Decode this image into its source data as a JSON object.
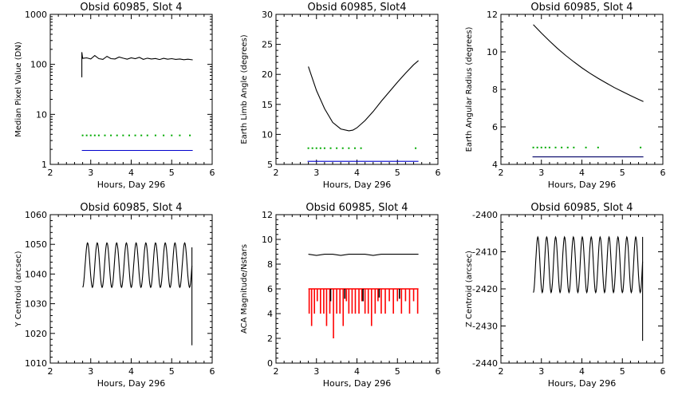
{
  "chart_data": [
    {
      "type": "line",
      "title": "Obsid 60985, Slot 4",
      "xlabel": "Hours, Day 296",
      "ylabel": "Median Pixel Value (DN)",
      "xlim": [
        2,
        6
      ],
      "ylim": [
        1,
        1000
      ],
      "ylog": true,
      "xticks": [
        "2",
        "3",
        "4",
        "5",
        "6"
      ],
      "yticks": [
        {
          "v": 1,
          "l": "1"
        },
        {
          "v": 10,
          "l": "10"
        },
        {
          "v": 100,
          "l": "100"
        },
        {
          "v": 1000,
          "l": "1000"
        }
      ],
      "series": [
        {
          "color": "#000000",
          "style": "line",
          "x": [
            2.78,
            2.78,
            2.8,
            2.9,
            3.0,
            3.1,
            3.2,
            3.3,
            3.4,
            3.5,
            3.6,
            3.7,
            3.8,
            3.9,
            4.0,
            4.1,
            4.2,
            4.3,
            4.4,
            4.5,
            4.6,
            4.7,
            4.8,
            4.9,
            5.0,
            5.1,
            5.2,
            5.3,
            5.4,
            5.52
          ],
          "y": [
            55,
            175,
            132,
            135,
            128,
            150,
            130,
            126,
            145,
            130,
            128,
            140,
            133,
            127,
            135,
            130,
            138,
            126,
            133,
            128,
            131,
            125,
            132,
            127,
            130,
            126,
            128,
            124,
            127,
            123
          ]
        },
        {
          "color": "#00aa00",
          "style": "dots",
          "x": [
            2.8,
            2.9,
            3.0,
            3.1,
            3.2,
            3.35,
            3.5,
            3.65,
            3.8,
            3.95,
            4.1,
            4.25,
            4.4,
            4.6,
            4.8,
            5.0,
            5.2,
            5.45
          ],
          "y": [
            3.8,
            3.8,
            3.8,
            3.8,
            3.8,
            3.8,
            3.8,
            3.8,
            3.8,
            3.8,
            3.8,
            3.8,
            3.8,
            3.8,
            3.8,
            3.8,
            3.8,
            3.8
          ]
        },
        {
          "color": "#0000cc",
          "style": "line",
          "x": [
            2.78,
            5.52
          ],
          "y": [
            1.9,
            1.9
          ]
        }
      ]
    },
    {
      "type": "line",
      "title": "Obsid 60985, Slot4",
      "xlabel": "Hours, Day 296",
      "ylabel": "Earth Limb Angle (degrees)",
      "xlim": [
        2,
        6
      ],
      "ylim": [
        5,
        30
      ],
      "xticks": [
        "2",
        "3",
        "4",
        "5",
        "6"
      ],
      "yticks": [
        {
          "v": 5,
          "l": "5"
        },
        {
          "v": 10,
          "l": "10"
        },
        {
          "v": 15,
          "l": "15"
        },
        {
          "v": 20,
          "l": "20"
        },
        {
          "v": 25,
          "l": "25"
        },
        {
          "v": 30,
          "l": "30"
        }
      ],
      "series": [
        {
          "color": "#000000",
          "style": "line",
          "x": [
            2.8,
            3.0,
            3.2,
            3.4,
            3.6,
            3.8,
            3.9,
            4.0,
            4.2,
            4.4,
            4.6,
            4.8,
            5.0,
            5.2,
            5.4,
            5.52
          ],
          "y": [
            21.3,
            17.3,
            14.3,
            12.0,
            10.9,
            10.6,
            10.7,
            11.1,
            12.3,
            13.8,
            15.5,
            17.1,
            18.7,
            20.2,
            21.6,
            22.3
          ]
        },
        {
          "color": "#00aa00",
          "style": "dots",
          "x": [
            2.8,
            2.9,
            3.0,
            3.1,
            3.2,
            3.35,
            3.5,
            3.65,
            3.8,
            3.95,
            4.1,
            5.45
          ],
          "y": [
            7.7,
            7.7,
            7.7,
            7.7,
            7.7,
            7.7,
            7.7,
            7.7,
            7.7,
            7.7,
            7.7,
            7.7
          ]
        },
        {
          "color": "#0000cc",
          "style": "line",
          "x": [
            2.78,
            5.52
          ],
          "y": [
            5.5,
            5.5
          ]
        }
      ]
    },
    {
      "type": "line",
      "title": "Obsid 60985, Slot 4",
      "xlabel": "Hours, Day 296",
      "ylabel": "Earth Angular Radius (degrees)",
      "xlim": [
        2,
        6
      ],
      "ylim": [
        4,
        12
      ],
      "xticks": [
        "2",
        "3",
        "4",
        "5",
        "6"
      ],
      "yticks": [
        {
          "v": 4,
          "l": "4"
        },
        {
          "v": 6,
          "l": "6"
        },
        {
          "v": 8,
          "l": "8"
        },
        {
          "v": 10,
          "l": "10"
        },
        {
          "v": 12,
          "l": "12"
        }
      ],
      "series": [
        {
          "color": "#000000",
          "style": "line",
          "x": [
            2.8,
            3.0,
            3.2,
            3.4,
            3.6,
            3.8,
            4.0,
            4.2,
            4.4,
            4.6,
            4.8,
            5.0,
            5.2,
            5.4,
            5.52
          ],
          "y": [
            11.45,
            11.0,
            10.58,
            10.18,
            9.81,
            9.47,
            9.15,
            8.86,
            8.59,
            8.34,
            8.1,
            7.88,
            7.67,
            7.47,
            7.35
          ]
        },
        {
          "color": "#00aa00",
          "style": "dots",
          "x": [
            2.8,
            2.9,
            3.0,
            3.1,
            3.2,
            3.35,
            3.5,
            3.65,
            3.8,
            4.1,
            4.4,
            5.45
          ],
          "y": [
            4.9,
            4.9,
            4.9,
            4.9,
            4.9,
            4.9,
            4.9,
            4.9,
            4.9,
            4.9,
            4.9,
            4.9
          ]
        },
        {
          "color": "#000066",
          "style": "line",
          "x": [
            2.78,
            5.52
          ],
          "y": [
            4.4,
            4.4
          ]
        }
      ]
    },
    {
      "type": "line",
      "title": "Obsid 60985, Slot 4",
      "xlabel": "Hours, Day 296",
      "ylabel": "Y Centroid (arcsec)",
      "xlim": [
        2,
        6
      ],
      "ylim": [
        1010,
        1060
      ],
      "xticks": [
        "2",
        "3",
        "4",
        "5",
        "6"
      ],
      "yticks": [
        {
          "v": 1010,
          "l": "1010"
        },
        {
          "v": 1020,
          "l": "1020"
        },
        {
          "v": 1030,
          "l": "1030"
        },
        {
          "v": 1040,
          "l": "1040"
        },
        {
          "v": 1050,
          "l": "1050"
        },
        {
          "v": 1060,
          "l": "1060"
        }
      ],
      "series": [
        {
          "color": "#000000",
          "style": "line",
          "oscillate": {
            "start": 2.8,
            "end": 5.5,
            "mid": 1043,
            "amp": 7.5,
            "period": 0.24,
            "phase": -1.6
          },
          "tail": {
            "x": [
              5.5,
              5.5
            ],
            "y": [
              1049,
              1016
            ]
          }
        }
      ]
    },
    {
      "type": "line",
      "title": "Obsid 60985, Slot 4",
      "xlabel": "Hours, Day 296",
      "ylabel": "ACA Magnitude/Nstars",
      "xlim": [
        2,
        6
      ],
      "ylim": [
        0,
        12
      ],
      "xticks": [
        "2",
        "3",
        "4",
        "5",
        "6"
      ],
      "yticks": [
        {
          "v": 0,
          "l": "0"
        },
        {
          "v": 2,
          "l": "2"
        },
        {
          "v": 4,
          "l": "4"
        },
        {
          "v": 6,
          "l": "6"
        },
        {
          "v": 8,
          "l": "8"
        },
        {
          "v": 10,
          "l": "10"
        },
        {
          "v": 12,
          "l": "12"
        }
      ],
      "series": [
        {
          "color": "#000000",
          "style": "line",
          "x": [
            2.8,
            3.0,
            3.2,
            3.4,
            3.6,
            3.8,
            4.0,
            4.2,
            4.4,
            4.6,
            4.8,
            5.0,
            5.2,
            5.4,
            5.52
          ],
          "y": [
            8.8,
            8.7,
            8.8,
            8.8,
            8.7,
            8.8,
            8.8,
            8.8,
            8.7,
            8.8,
            8.8,
            8.8,
            8.8,
            8.8,
            8.8
          ]
        },
        {
          "color": "#ff0000",
          "style": "bars",
          "base": 6,
          "x": [
            2.82,
            2.88,
            2.95,
            3.02,
            3.1,
            3.18,
            3.25,
            3.33,
            3.42,
            3.5,
            3.58,
            3.66,
            3.74,
            3.8,
            3.88,
            3.96,
            4.05,
            4.12,
            4.2,
            4.28,
            4.36,
            4.45,
            4.52,
            4.6,
            4.7,
            4.8,
            4.9,
            5.0,
            5.1,
            5.2,
            5.3,
            5.4,
            5.5
          ],
          "y": [
            4,
            3,
            4,
            5,
            4,
            4,
            3,
            4,
            2,
            4,
            4,
            3,
            5,
            4,
            4,
            4,
            4,
            5,
            4,
            4,
            3,
            4,
            5,
            4,
            4,
            5,
            4,
            5,
            4,
            5,
            4,
            5,
            4
          ]
        },
        {
          "color": "#000000",
          "style": "bars",
          "base": 6,
          "x": [
            3.35,
            3.7,
            4.15,
            4.55,
            5.05
          ],
          "y": [
            5,
            5.2,
            5,
            5.3,
            5.2
          ]
        }
      ]
    },
    {
      "type": "line",
      "title": "Obsid 60985, Slot 4",
      "xlabel": "Hours, Day 296",
      "ylabel": "Z Centroid (arcsec)",
      "xlim": [
        2,
        6
      ],
      "ylim": [
        -2440,
        -2400
      ],
      "xticks": [
        "2",
        "3",
        "4",
        "5",
        "6"
      ],
      "yticks": [
        {
          "v": -2440,
          "l": "-2440"
        },
        {
          "v": -2430,
          "l": "-2430"
        },
        {
          "v": -2420,
          "l": "-2420"
        },
        {
          "v": -2410,
          "l": "-2410"
        },
        {
          "v": -2400,
          "l": "-2400"
        }
      ],
      "series": [
        {
          "color": "#000000",
          "style": "line",
          "oscillate": {
            "start": 2.8,
            "end": 5.5,
            "mid": -2413.5,
            "amp": 7.5,
            "period": 0.22,
            "phase": -1.6
          },
          "tail": {
            "x": [
              5.5,
              5.5
            ],
            "y": [
              -2406,
              -2434
            ]
          }
        }
      ]
    }
  ]
}
